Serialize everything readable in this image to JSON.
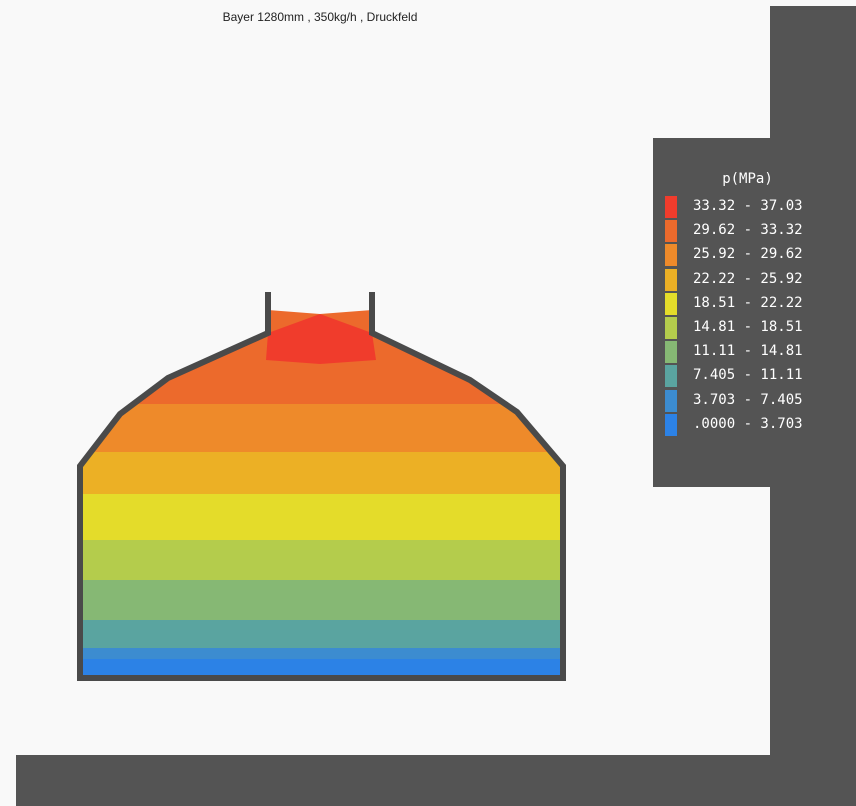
{
  "title": "Bayer 1280mm , 350kg/h , Druckfeld",
  "legend": {
    "title": "p(MPa)",
    "items": [
      {
        "range": "33.32 - 37.03",
        "color": "#f03c2c"
      },
      {
        "range": "29.62 - 33.32",
        "color": "#ec6a2c"
      },
      {
        "range": "25.92 - 29.62",
        "color": "#ee8a2a"
      },
      {
        "range": "22.22 - 25.92",
        "color": "#ecb025"
      },
      {
        "range": "18.51 - 22.22",
        "color": "#e4dc2a"
      },
      {
        "range": "14.81 - 18.51",
        "color": "#b4cc4c"
      },
      {
        "range": "11.11 - 14.81",
        "color": "#86b874"
      },
      {
        "range": "7.405 - 11.11",
        "color": "#5aa4a0"
      },
      {
        "range": "3.703 - 7.405",
        "color": "#3c8cd0"
      },
      {
        "range": ".0000 - 3.703",
        "color": "#2c82e6"
      }
    ]
  },
  "vessel": {
    "outline_color": "#4a4a4a"
  }
}
